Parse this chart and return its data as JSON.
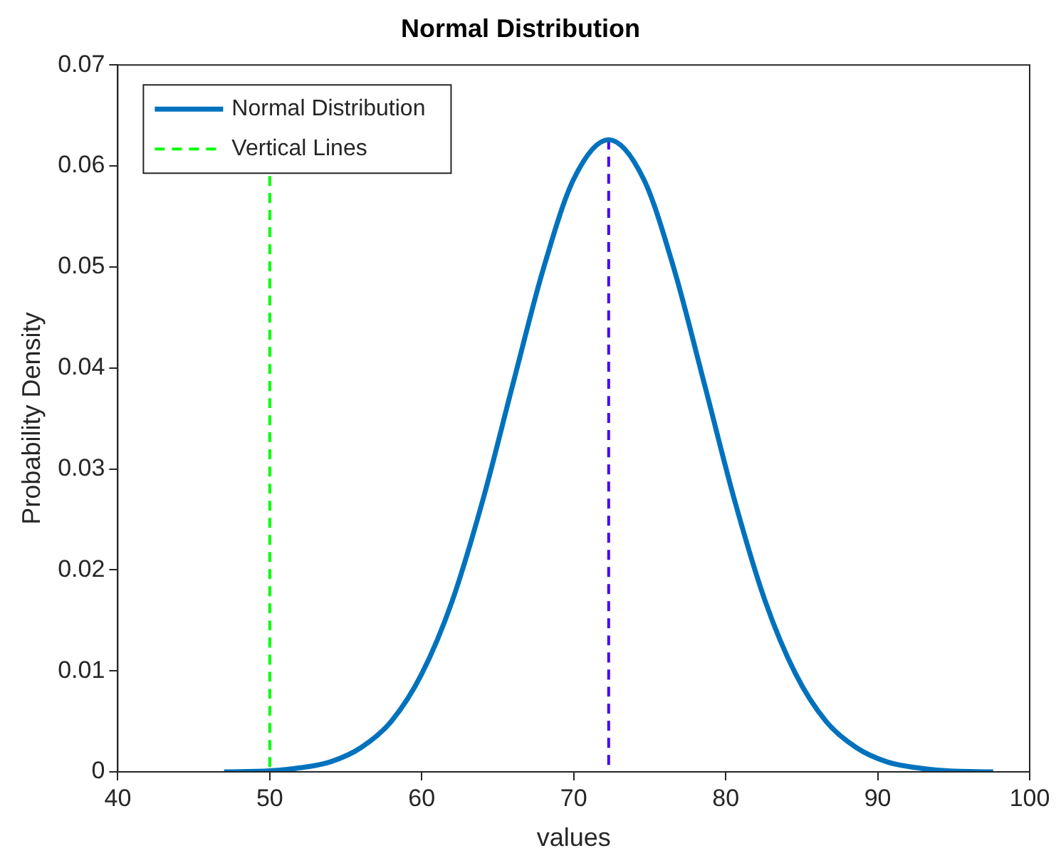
{
  "chart_data": {
    "type": "line",
    "title": "Normal Distribution",
    "xlabel": "values",
    "ylabel": "Probability Density",
    "xlim": [
      40,
      100
    ],
    "xticks": [
      40,
      50,
      60,
      70,
      80,
      90,
      100
    ],
    "ylim": [
      0,
      0.07
    ],
    "yticks": [
      0,
      0.01,
      0.02,
      0.03,
      0.04,
      0.05,
      0.06,
      0.07
    ],
    "grid": false,
    "legend": "top left",
    "marker": "none",
    "series": [
      {
        "name": "Normal Distribution",
        "color": "#0072bd",
        "line_style": "solid",
        "x": [
          47,
          50,
          52,
          54,
          56,
          58,
          60,
          62,
          64,
          66,
          68,
          70,
          72.3,
          74.6,
          76.6,
          78.6,
          80.6,
          82.6,
          84.6,
          86.6,
          88.6,
          90.6,
          92.6,
          94.6,
          97.6
        ],
        "values": [
          0,
          0.0001,
          0.0004,
          0.001,
          0.0024,
          0.005,
          0.0097,
          0.0169,
          0.0268,
          0.0384,
          0.0498,
          0.0587,
          0.0626,
          0.0587,
          0.0498,
          0.0384,
          0.0268,
          0.0169,
          0.0097,
          0.005,
          0.0024,
          0.001,
          0.0004,
          0.0001,
          0
        ]
      },
      {
        "name": "Vertical Lines",
        "color": "#00ff00",
        "line_style": "dashed",
        "x": [
          50,
          50
        ],
        "values": [
          0.059,
          0
        ]
      },
      {
        "color": "#4400ff",
        "line_style": "dashed",
        "x": [
          72.3,
          72.3
        ],
        "values": [
          0.0626,
          0
        ]
      }
    ]
  }
}
